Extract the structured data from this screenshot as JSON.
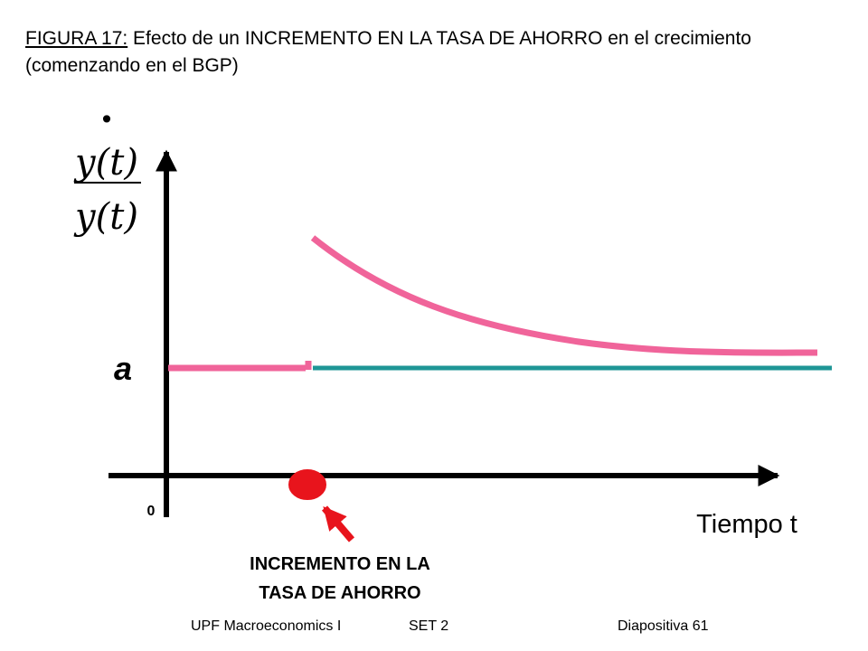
{
  "title": {
    "figure_label": "FIGURA 17:",
    "text": "Efecto de un INCREMENTO EN LA TASA DE AHORRO en el crecimiento (comenzando en el BGP)"
  },
  "diagram": {
    "y_axis_label": {
      "numerator": "y(t)",
      "denominator": "y(t)",
      "dot": "•"
    },
    "level_label": "a",
    "origin_label": "0",
    "x_axis_label": "Tiempo t",
    "event_label_line1": "INCREMENTO EN LA",
    "event_label_line2": "TASA DE AHORRO",
    "colors": {
      "axis": "#000000",
      "growth_path": "#f0649a",
      "baseline": "#1e9696",
      "event_marker": "#e8141c"
    }
  },
  "footer": {
    "course": "UPF Macroeconomics I",
    "set": "SET 2",
    "slide": "Diapositiva 61"
  }
}
